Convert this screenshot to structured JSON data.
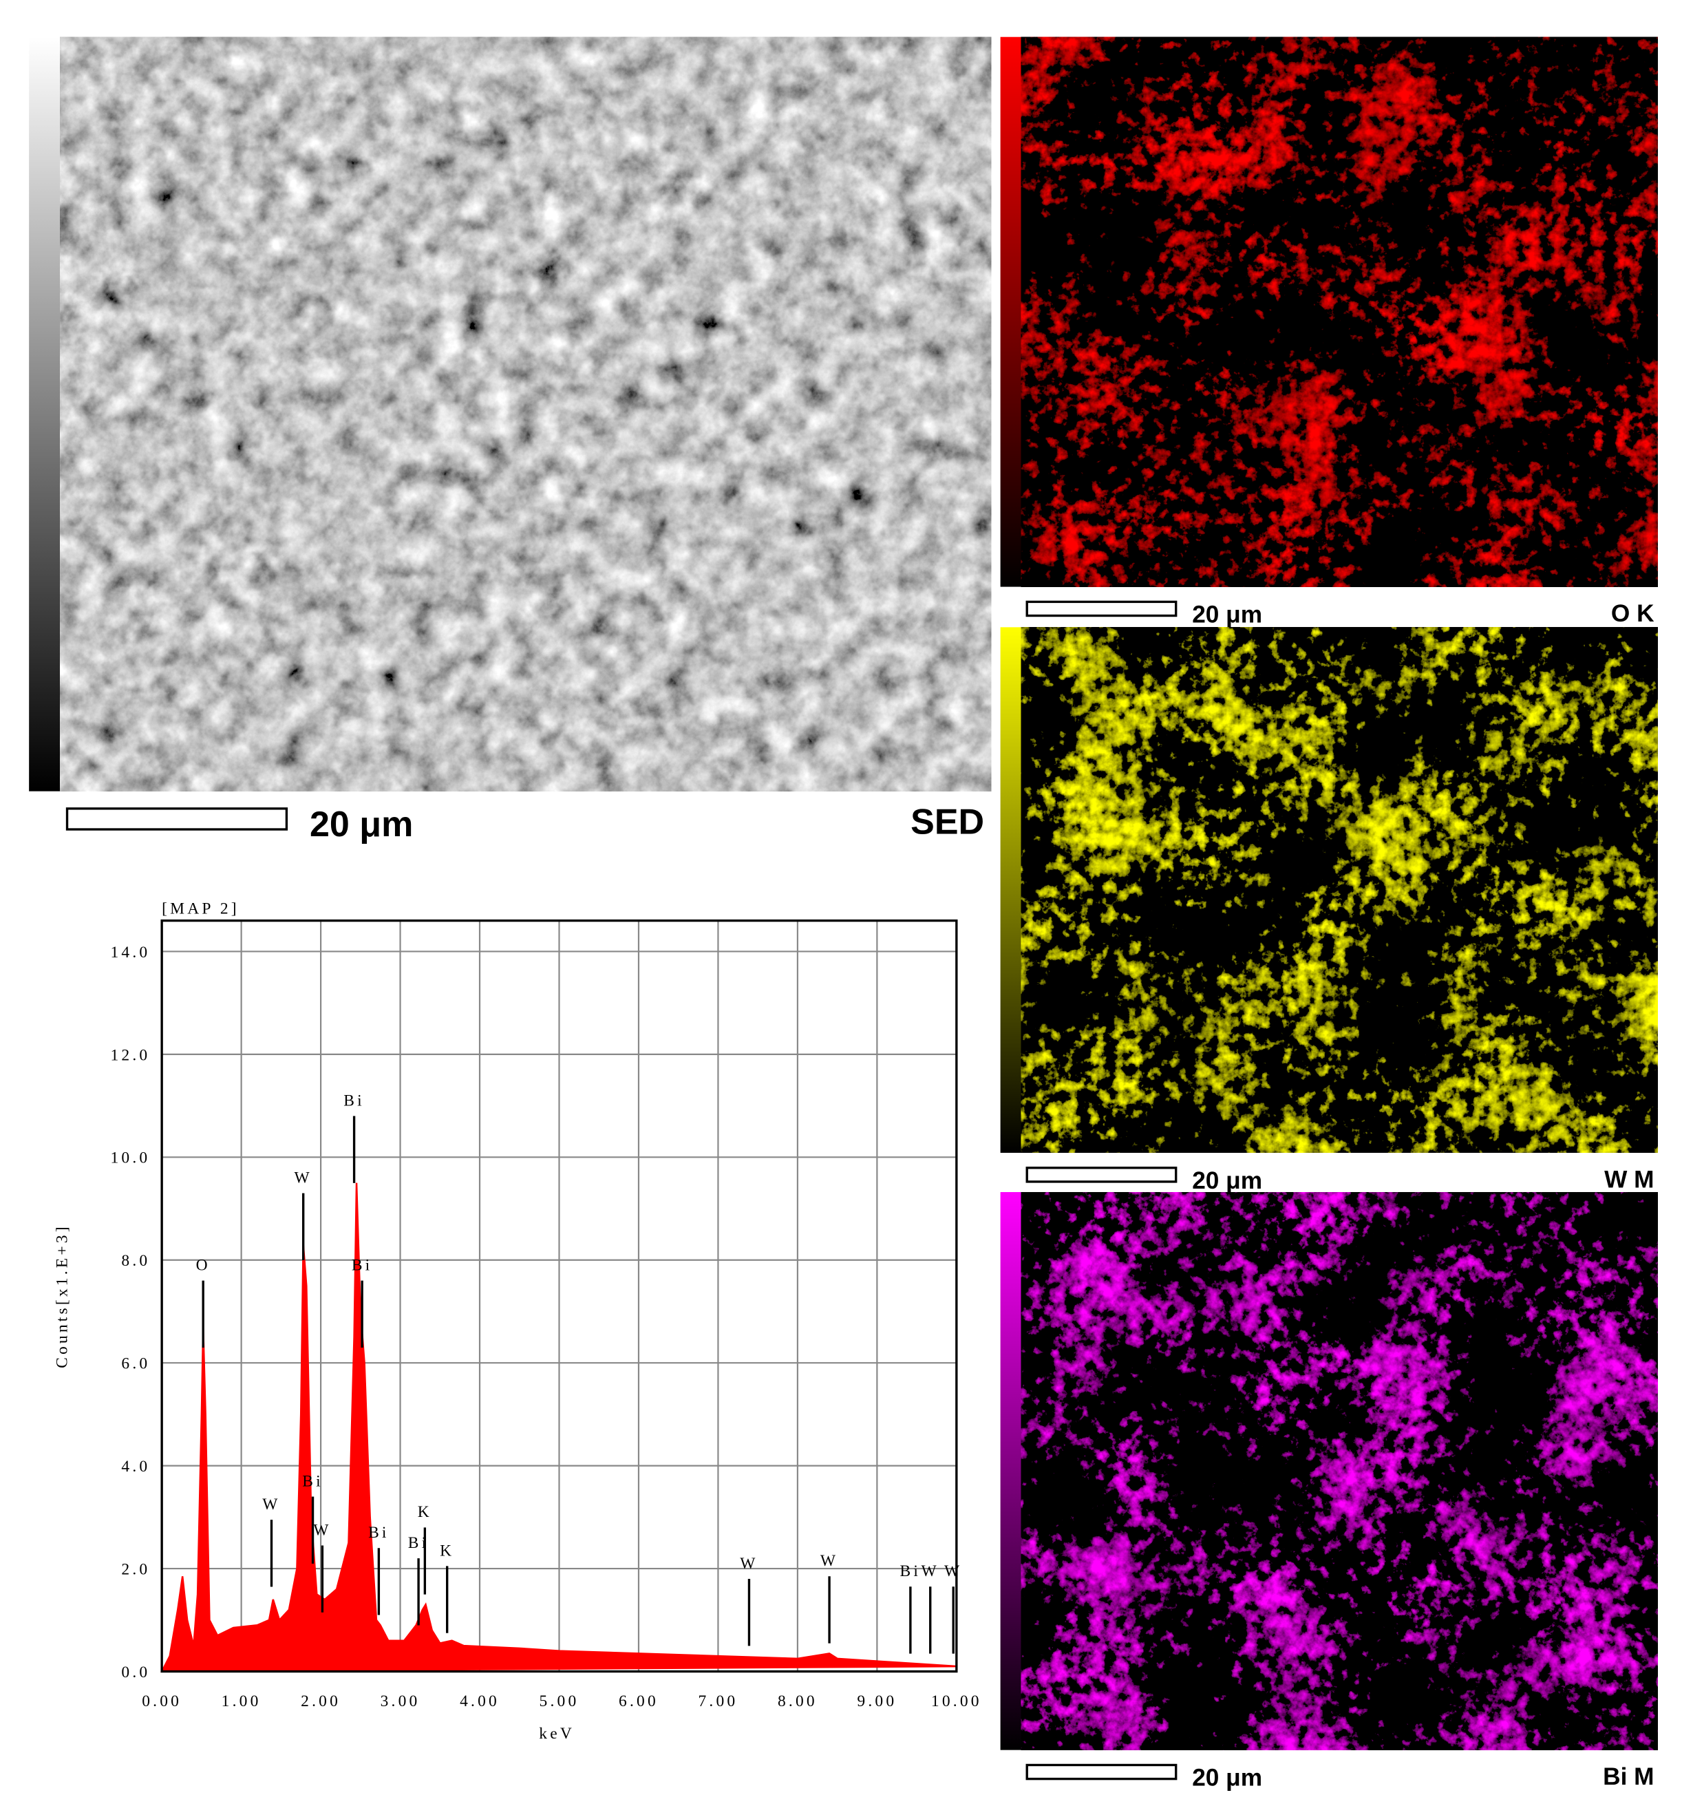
{
  "panels": {
    "sem": {
      "scale_bar": "20 μm",
      "label": "SED"
    },
    "maps": [
      {
        "scale_bar": "20 μm",
        "label": "O K",
        "color": "#ff0000"
      },
      {
        "scale_bar": "20 μm",
        "label": "W M",
        "color": "#ffff00"
      },
      {
        "scale_bar": "20 μm",
        "label": "Bi M",
        "color": "#ff00ff"
      }
    ]
  },
  "chart_data": {
    "type": "area",
    "title": "[MAP 2]",
    "x_label": "keV",
    "y_label": "Counts[x1.E+3]",
    "color": "#ff0000",
    "grid": true,
    "x": [
      0.0,
      0.1,
      0.2,
      0.26,
      0.32,
      0.4,
      0.45,
      0.5,
      0.52,
      0.55,
      0.6,
      0.7,
      0.9,
      1.2,
      1.35,
      1.4,
      1.48,
      1.6,
      1.7,
      1.75,
      1.78,
      1.82,
      1.88,
      1.95,
      2.05,
      2.2,
      2.35,
      2.42,
      2.45,
      2.5,
      2.55,
      2.62,
      2.7,
      2.75,
      2.85,
      3.05,
      3.2,
      3.28,
      3.32,
      3.4,
      3.5,
      3.65,
      3.8,
      4.5,
      5.0,
      6.0,
      7.0,
      8.0,
      8.4,
      8.5,
      9.0,
      10.0
    ],
    "values": [
      0.0,
      0.3,
      1.2,
      1.85,
      1.0,
      0.5,
      1.5,
      5.0,
      6.7,
      5.0,
      1.0,
      0.7,
      0.85,
      0.9,
      1.0,
      1.4,
      1.0,
      1.2,
      2.0,
      5.0,
      8.3,
      7.5,
      3.0,
      1.5,
      1.4,
      1.6,
      2.5,
      6.5,
      9.5,
      7.0,
      6.0,
      3.0,
      1.0,
      0.9,
      0.6,
      0.6,
      0.9,
      1.2,
      1.3,
      0.8,
      0.55,
      0.6,
      0.5,
      0.45,
      0.4,
      0.35,
      0.3,
      0.25,
      0.35,
      0.25,
      0.2,
      0.1
    ],
    "xlim": [
      0,
      10
    ],
    "ylim": [
      0,
      14.6
    ],
    "xticks": [
      {
        "value": 0,
        "label": "0.00"
      },
      {
        "value": 1,
        "label": "1.00"
      },
      {
        "value": 2,
        "label": "2.00"
      },
      {
        "value": 3,
        "label": "3.00"
      },
      {
        "value": 4,
        "label": "4.00"
      },
      {
        "value": 5,
        "label": "5.00"
      },
      {
        "value": 6,
        "label": "6.00"
      },
      {
        "value": 7,
        "label": "7.00"
      },
      {
        "value": 8,
        "label": "8.00"
      },
      {
        "value": 9,
        "label": "9.00"
      },
      {
        "value": 10,
        "label": "10.00"
      }
    ],
    "yticks": [
      {
        "value": 0,
        "label": "0.0"
      },
      {
        "value": 2,
        "label": "2.0"
      },
      {
        "value": 4,
        "label": "4.0"
      },
      {
        "value": 6,
        "label": "6.0"
      },
      {
        "value": 8,
        "label": "8.0"
      },
      {
        "value": 10,
        "label": "10.0"
      },
      {
        "value": 12,
        "label": "12.0"
      },
      {
        "value": 14,
        "label": "14.0"
      }
    ],
    "annotations": [
      {
        "text": "O",
        "x": 0.52,
        "y": 7.6
      },
      {
        "text": "W",
        "x": 1.38,
        "y": 2.95
      },
      {
        "text": "W",
        "x": 1.78,
        "y": 9.3
      },
      {
        "text": "Bi",
        "x": 1.9,
        "y": 3.4
      },
      {
        "text": "W",
        "x": 2.02,
        "y": 2.45
      },
      {
        "text": "Bi",
        "x": 2.42,
        "y": 10.8
      },
      {
        "text": "Bi",
        "x": 2.52,
        "y": 7.6
      },
      {
        "text": "Bi",
        "x": 2.73,
        "y": 2.4
      },
      {
        "text": "Bi",
        "x": 3.23,
        "y": 2.2
      },
      {
        "text": "K",
        "x": 3.31,
        "y": 2.8
      },
      {
        "text": "K",
        "x": 3.59,
        "y": 2.05
      },
      {
        "text": "W",
        "x": 7.39,
        "y": 1.8
      },
      {
        "text": "W",
        "x": 8.4,
        "y": 1.85
      },
      {
        "text": "Bi",
        "x": 9.42,
        "y": 1.65
      },
      {
        "text": "W",
        "x": 9.67,
        "y": 1.65
      },
      {
        "text": "W",
        "x": 9.96,
        "y": 1.65
      }
    ]
  }
}
